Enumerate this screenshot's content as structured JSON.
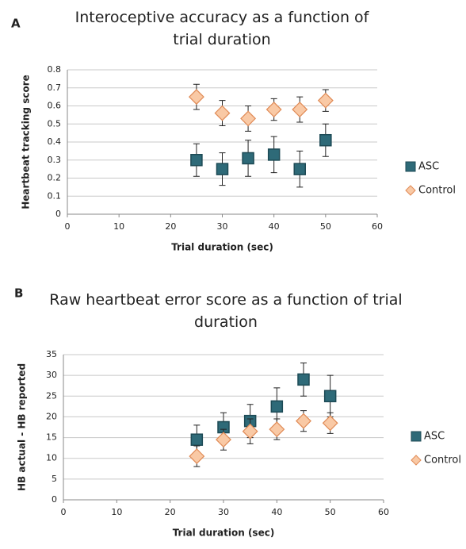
{
  "chart_data": [
    {
      "type": "scatter",
      "panel_label": "A",
      "title": "Interoceptive accuracy as a function of trial duration",
      "x_label": "Trial duration (sec)",
      "y_label": "Heartbeat tracking score",
      "xlim": [
        0,
        60
      ],
      "xticks": [
        0,
        10,
        20,
        30,
        40,
        50,
        60
      ],
      "ylim": [
        0,
        0.8
      ],
      "yticks": [
        0,
        0.1,
        0.2,
        0.3,
        0.4,
        0.5,
        0.6,
        0.7,
        0.8
      ],
      "grid": true,
      "series": [
        {
          "name": "ASC",
          "color": "#2e6a78",
          "marker": "square",
          "x": [
            25,
            30,
            35,
            40,
            45,
            50
          ],
          "values": [
            0.3,
            0.25,
            0.31,
            0.33,
            0.25,
            0.41
          ],
          "errors": [
            0.09,
            0.09,
            0.1,
            0.1,
            0.1,
            0.09
          ]
        },
        {
          "name": "Control",
          "color": "#f9c9a5",
          "marker": "diamond",
          "x": [
            25,
            30,
            35,
            40,
            45,
            50
          ],
          "values": [
            0.65,
            0.56,
            0.53,
            0.58,
            0.58,
            0.63
          ],
          "errors": [
            0.07,
            0.07,
            0.07,
            0.06,
            0.07,
            0.06
          ]
        }
      ]
    },
    {
      "type": "scatter",
      "panel_label": "B",
      "title": "Raw heartbeat error score as a function of trial duration",
      "x_label": "Trial duration (sec)",
      "y_label": "HB actual - HB reported",
      "xlim": [
        0,
        60
      ],
      "xticks": [
        0,
        10,
        20,
        30,
        40,
        50,
        60
      ],
      "ylim": [
        0,
        35
      ],
      "yticks": [
        0,
        5,
        10,
        15,
        20,
        25,
        30,
        35
      ],
      "grid": true,
      "series": [
        {
          "name": "ASC",
          "color": "#2e6a78",
          "marker": "square",
          "x": [
            25,
            30,
            35,
            40,
            45,
            50
          ],
          "values": [
            14.5,
            17.5,
            19,
            22.5,
            29,
            25
          ],
          "errors": [
            3.5,
            3.5,
            4,
            4.5,
            4,
            5
          ]
        },
        {
          "name": "Control",
          "color": "#f9c9a5",
          "marker": "diamond",
          "x": [
            25,
            30,
            35,
            40,
            45,
            50
          ],
          "values": [
            10.5,
            14.5,
            16.5,
            17,
            19,
            18.5
          ],
          "errors": [
            2.5,
            2.5,
            3,
            2.5,
            2.5,
            2.5
          ]
        }
      ]
    }
  ]
}
